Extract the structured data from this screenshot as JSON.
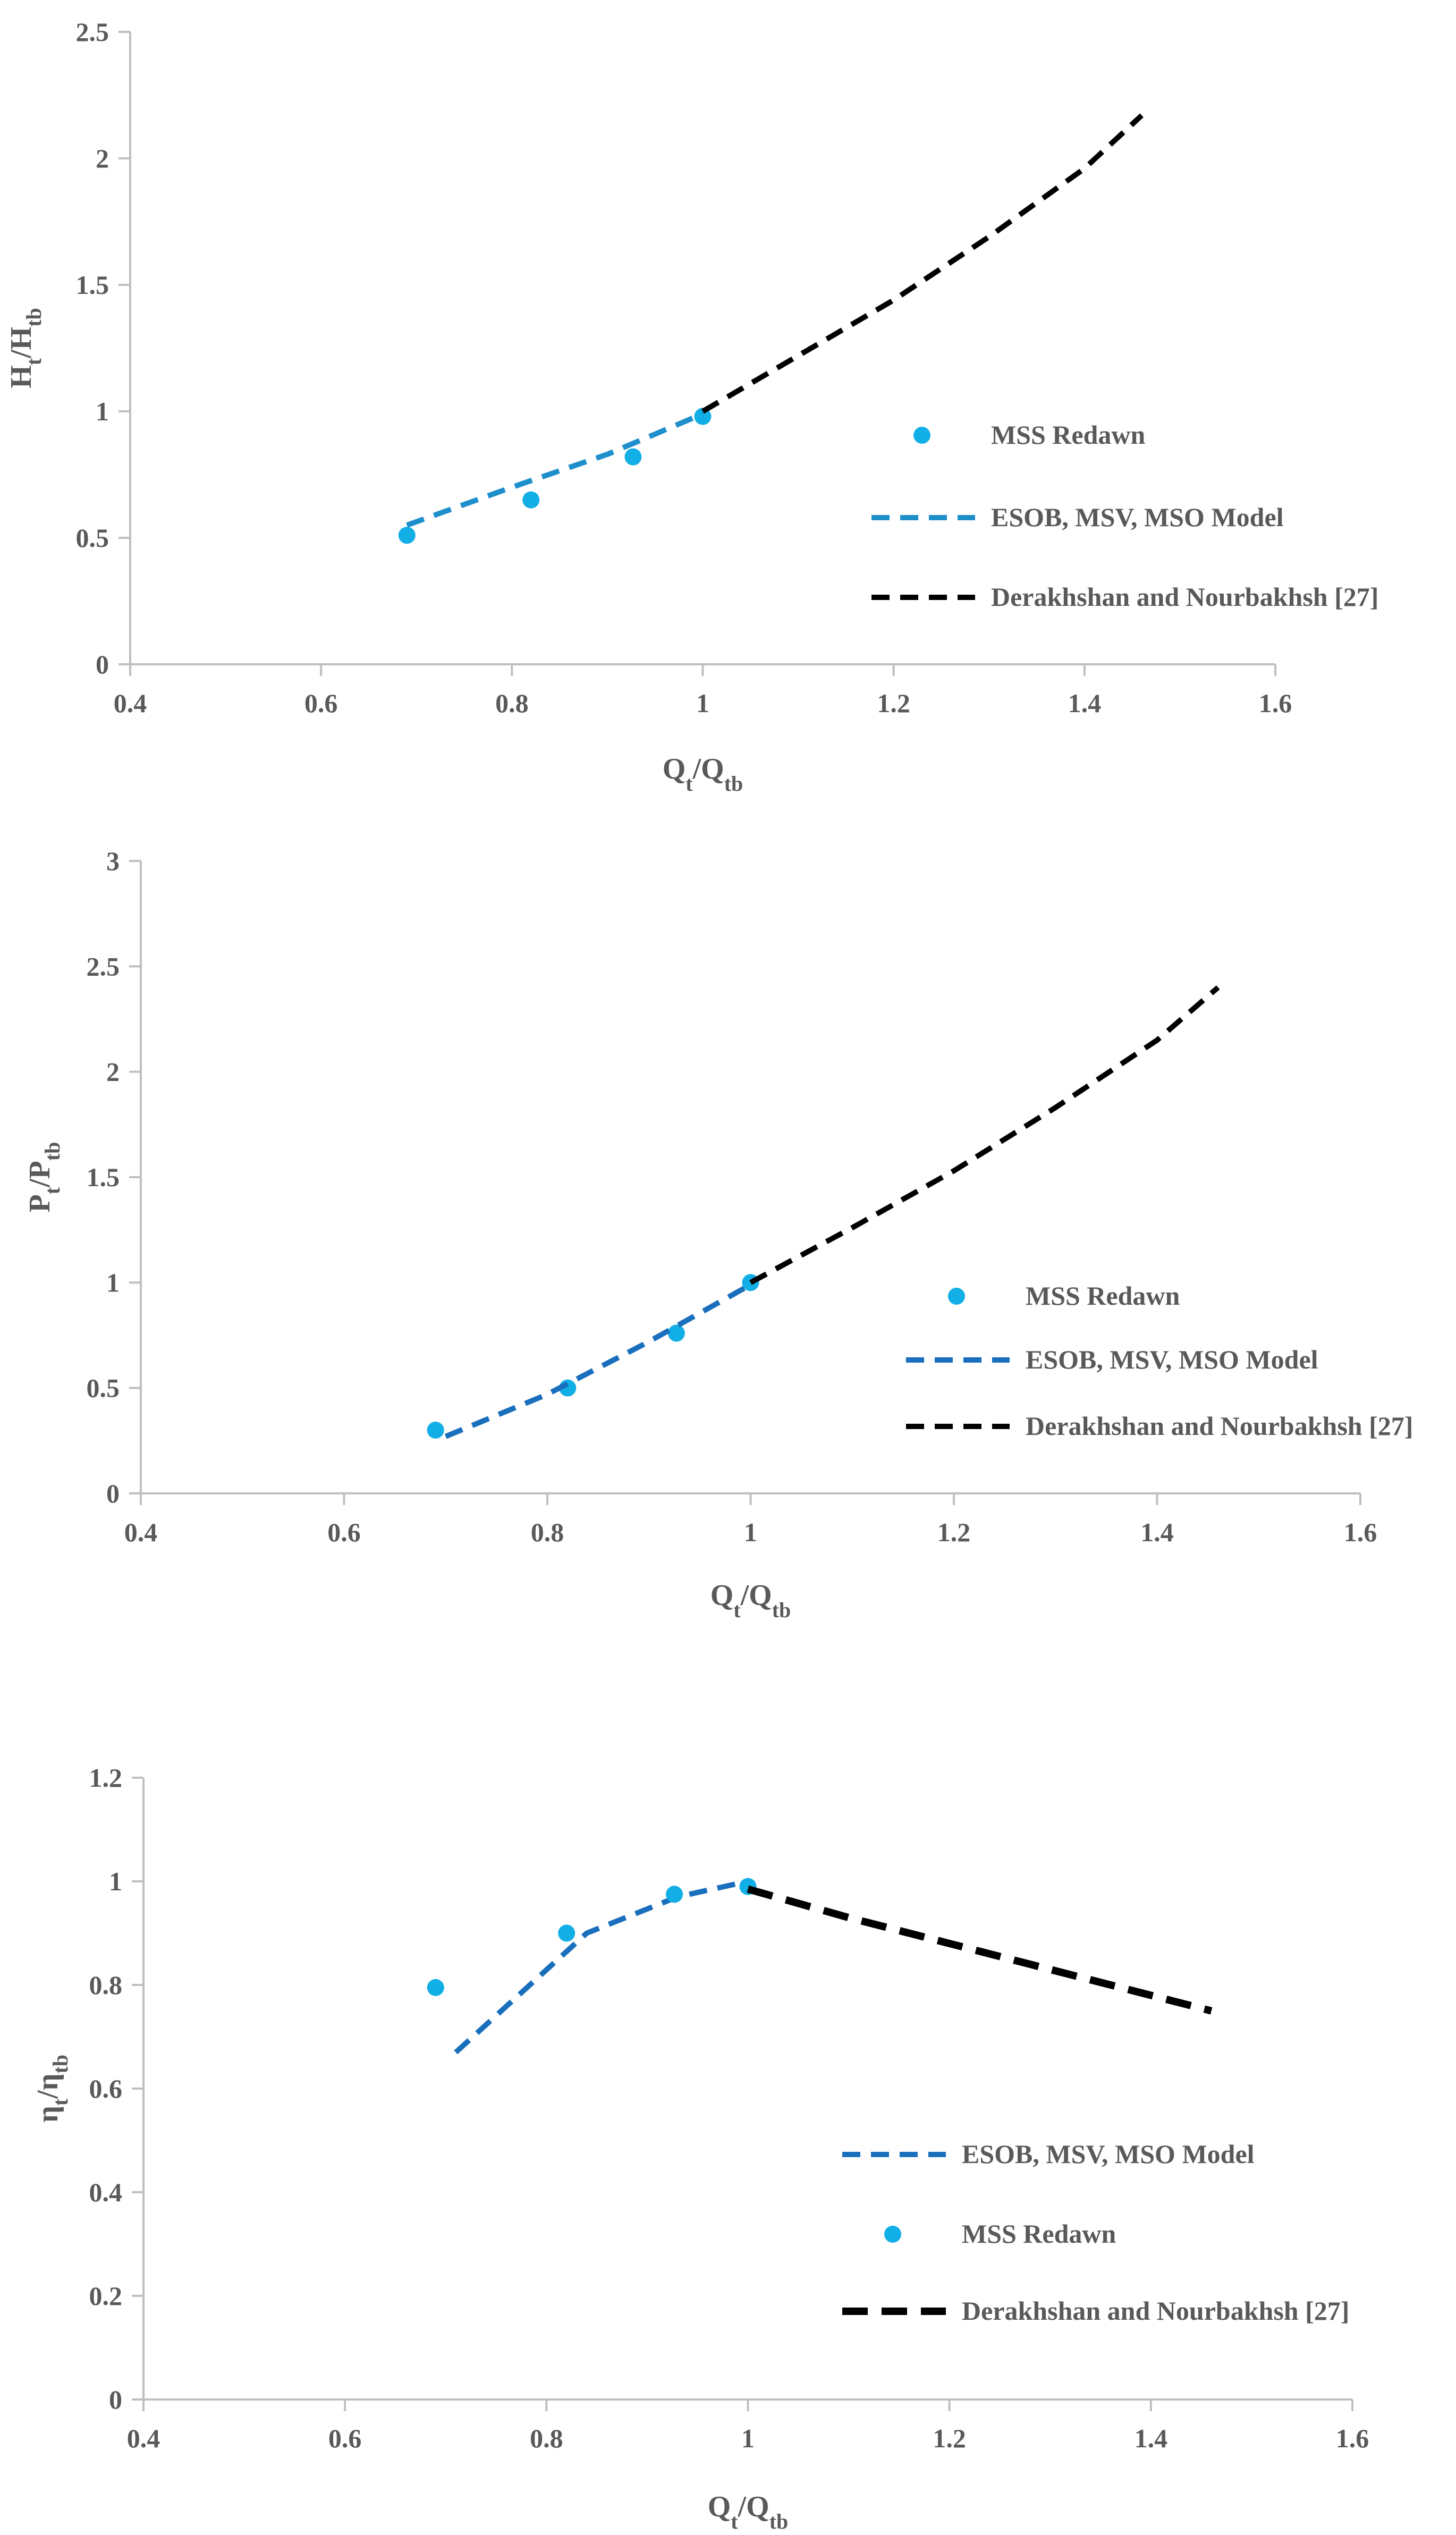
{
  "chart_data": [
    {
      "type": "line",
      "xlabel": "Qt/Qtb",
      "ylabel": "Ht/Htb",
      "xlim": [
        0.4,
        1.6
      ],
      "ylim": [
        0,
        2.5
      ],
      "xticks": [
        "0.4",
        "0.6",
        "0.8",
        "1",
        "1.2",
        "1.4",
        "1.6"
      ],
      "yticks": [
        "0",
        "0.5",
        "1",
        "1.5",
        "2",
        "2.5"
      ],
      "legend_position": "right",
      "series": [
        {
          "name": "MSS Redawn",
          "style": "markers",
          "color": "#12aee6",
          "x": [
            0.69,
            0.82,
            0.927,
            1.0
          ],
          "y": [
            0.51,
            0.65,
            0.82,
            0.98
          ]
        },
        {
          "name": "ESOB, MSV, MSO Model",
          "style": "dashed",
          "color": "#1f8fcc",
          "x": [
            0.69,
            0.8,
            0.9,
            1.0
          ],
          "y": [
            0.55,
            0.7,
            0.83,
            0.99
          ]
        },
        {
          "name": "Derakhshan and Nourbakhsh [27]",
          "style": "dashed",
          "color": "#000000",
          "x": [
            1.0,
            1.1,
            1.2,
            1.3,
            1.4,
            1.46
          ],
          "y": [
            1.0,
            1.22,
            1.44,
            1.69,
            1.96,
            2.17
          ]
        }
      ]
    },
    {
      "type": "line",
      "xlabel": "Qt/Qtb",
      "ylabel": "Pt/Ptb",
      "xlim": [
        0.4,
        1.6
      ],
      "ylim": [
        0,
        3
      ],
      "xticks": [
        "0.4",
        "0.6",
        "0.8",
        "1",
        "1.2",
        "1.4",
        "1.6"
      ],
      "yticks": [
        "0",
        "0.5",
        "1",
        "1.5",
        "2",
        "2.5",
        "3"
      ],
      "legend_position": "right",
      "series": [
        {
          "name": "MSS Redawn",
          "style": "markers",
          "color": "#12aee6",
          "x": [
            0.69,
            0.82,
            0.927,
            1.0
          ],
          "y": [
            0.3,
            0.5,
            0.76,
            1.0
          ]
        },
        {
          "name": "ESOB, MSV, MSO Model",
          "style": "dashed",
          "color": "#1a6fbd",
          "x": [
            0.7,
            0.8,
            0.9,
            1.0
          ],
          "y": [
            0.27,
            0.47,
            0.72,
            0.99
          ]
        },
        {
          "name": "Derakhshan and Nourbakhsh [27]",
          "style": "dashed",
          "color": "#000000",
          "x": [
            1.0,
            1.1,
            1.2,
            1.3,
            1.4,
            1.46
          ],
          "y": [
            1.0,
            1.26,
            1.53,
            1.83,
            2.15,
            2.4
          ]
        }
      ]
    },
    {
      "type": "line",
      "xlabel": "Qt/Qtb",
      "ylabel": "ηt/ηtb",
      "xlim": [
        0.4,
        1.6
      ],
      "ylim": [
        0,
        1.2
      ],
      "xticks": [
        "0.4",
        "0.6",
        "0.8",
        "1",
        "1.2",
        "1.4",
        "1.6"
      ],
      "yticks": [
        "0",
        "0.2",
        "0.4",
        "0.6",
        "0.8",
        "1",
        "1.2"
      ],
      "legend_position": "lower-right",
      "series": [
        {
          "name": "ESOB, MSV, MSO Model",
          "style": "dashed",
          "color": "#1a6fbd",
          "x": [
            0.71,
            0.84,
            0.93,
            1.0
          ],
          "y": [
            0.67,
            0.9,
            0.97,
            1.0
          ]
        },
        {
          "name": "MSS Redawn",
          "style": "markers",
          "color": "#12aee6",
          "x": [
            0.69,
            0.82,
            0.927,
            1.0
          ],
          "y": [
            0.795,
            0.9,
            0.975,
            0.99
          ]
        },
        {
          "name": "Derakhshan and Nourbakhsh [27]",
          "style": "dashed-thick",
          "color": "#000000",
          "x": [
            1.0,
            1.1,
            1.2,
            1.3,
            1.4,
            1.46
          ],
          "y": [
            0.985,
            0.93,
            0.88,
            0.83,
            0.78,
            0.75
          ]
        }
      ]
    }
  ]
}
